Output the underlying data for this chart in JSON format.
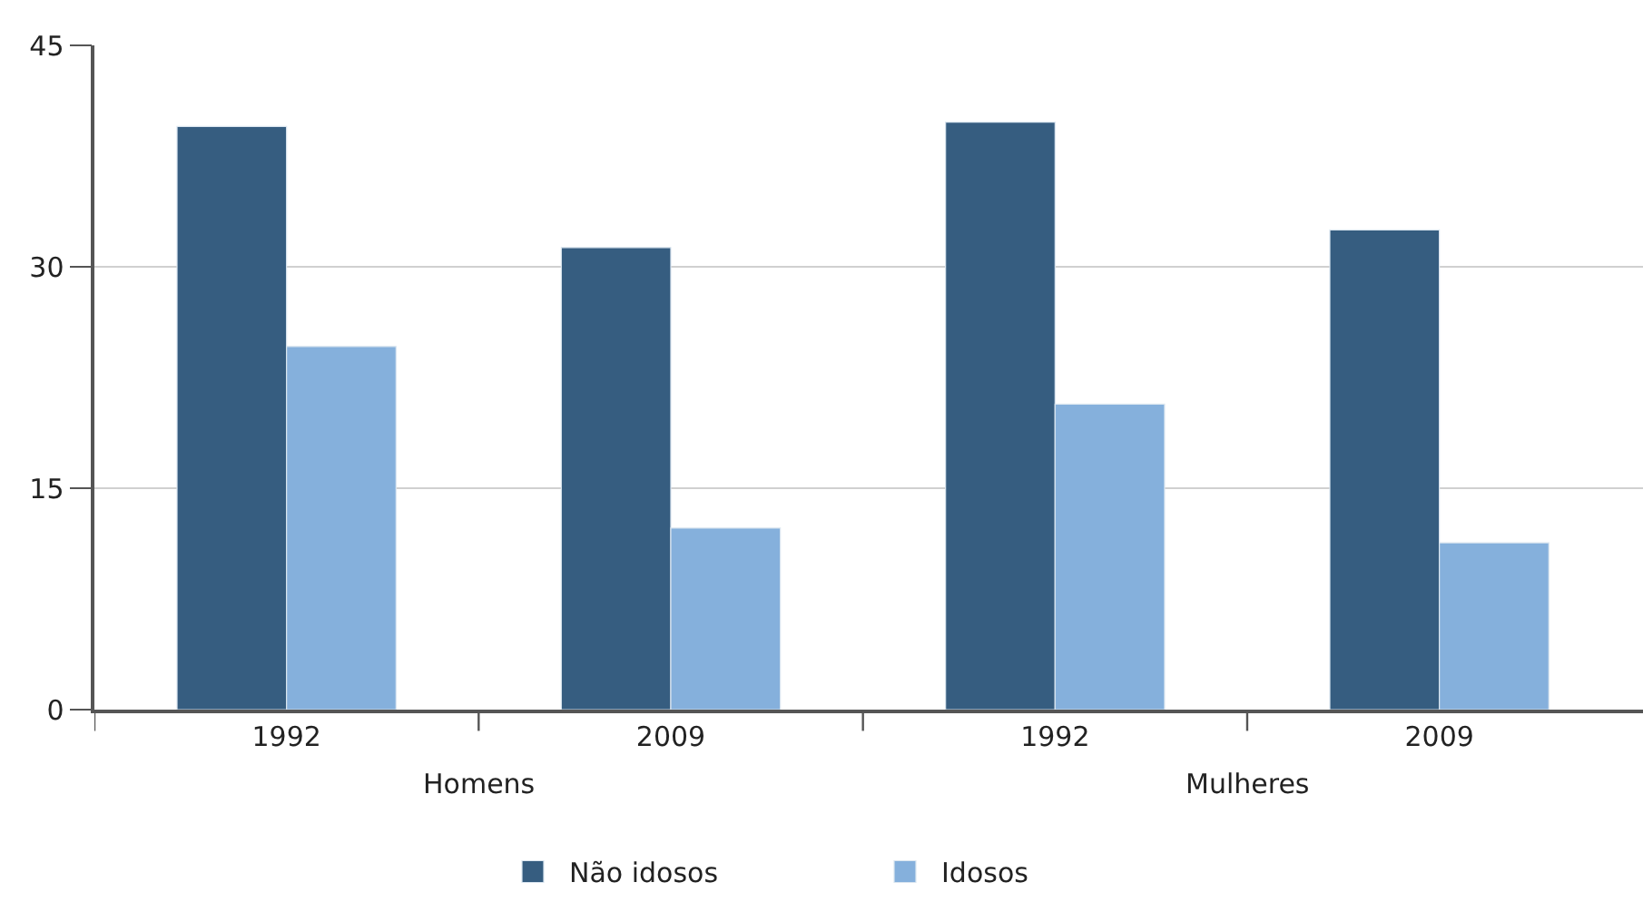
{
  "chart_data": {
    "type": "bar",
    "categories": [
      "1992",
      "2009",
      "1992",
      "2009"
    ],
    "series": [
      {
        "name": "Não idosos",
        "color": "#365d80",
        "values": [
          39.5,
          31.3,
          39.8,
          32.5
        ]
      },
      {
        "name": "Idosos",
        "color": "#85b0dc",
        "values": [
          24.6,
          12.3,
          20.7,
          11.3
        ]
      }
    ],
    "annotations": [
      "Homens",
      "Mulheres"
    ],
    "ylim": [
      0,
      45
    ],
    "yticks": [
      0,
      15,
      30,
      45
    ],
    "grid": "y",
    "legend": "bottom"
  }
}
